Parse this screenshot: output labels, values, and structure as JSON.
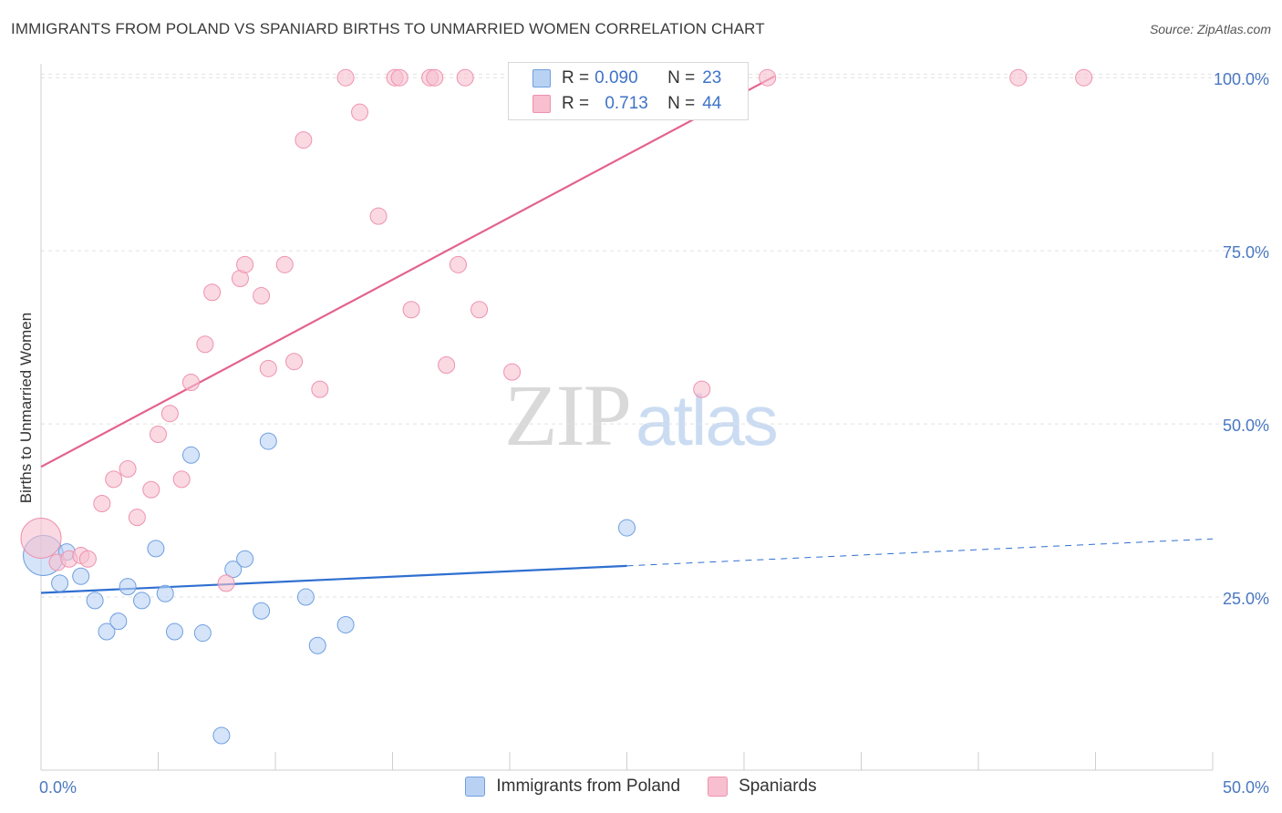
{
  "header": {
    "title": "IMMIGRANTS FROM POLAND VS SPANIARD BIRTHS TO UNMARRIED WOMEN CORRELATION CHART",
    "source": "Source: ZipAtlas.com"
  },
  "watermark": {
    "zip": "ZIP",
    "atlas": "atlas"
  },
  "legend": {
    "rows": [
      {
        "r_label": "R = ",
        "r_value": "0.090",
        "n_label": "N = ",
        "n_value": "23",
        "color": "#b9d2f3"
      },
      {
        "r_label": "R = ",
        "r_value": "0.713",
        "n_label": "N = ",
        "n_value": "44",
        "color": "#f7bfd0"
      }
    ]
  },
  "bottom_legend": [
    {
      "label": "Immigrants from Poland",
      "color": "#b9d2f3"
    },
    {
      "label": "Spaniards",
      "color": "#f7bfd0"
    }
  ],
  "chart_data": {
    "type": "scatter",
    "title": "IMMIGRANTS FROM POLAND VS SPANIARD BIRTHS TO UNMARRIED WOMEN CORRELATION CHART",
    "xlabel": "",
    "ylabel": "Births to Unmarried Women",
    "xlim": [
      0,
      50
    ],
    "ylim": [
      0,
      102
    ],
    "x_tick_labels": [
      "0.0%",
      "50.0%"
    ],
    "y_ticks": [
      25,
      50,
      75,
      100
    ],
    "y_tick_labels": [
      "25.0%",
      "50.0%",
      "75.0%",
      "100.0%"
    ],
    "grid": true,
    "legend_position": "top-center",
    "series": [
      {
        "name": "Immigrants from Poland",
        "color": "#6f9fe0",
        "fill": "#b9d2f3",
        "trend_color": "#2f6fd0",
        "trend": {
          "x0": 0,
          "y0": 25.6,
          "x1": 25,
          "y1": 29.5,
          "dash_to_x": 50,
          "dash_to_y": 33.4
        },
        "points": [
          [
            0.1,
            31.0,
            22
          ],
          [
            0.8,
            27.0,
            9
          ],
          [
            1.1,
            31.5,
            9
          ],
          [
            1.7,
            28.0,
            9
          ],
          [
            2.3,
            24.5,
            9
          ],
          [
            2.8,
            20.0,
            9
          ],
          [
            3.3,
            21.5,
            9
          ],
          [
            3.7,
            26.5,
            9
          ],
          [
            4.3,
            24.5,
            9
          ],
          [
            4.9,
            32.0,
            9
          ],
          [
            5.3,
            25.5,
            9
          ],
          [
            5.7,
            20.0,
            9
          ],
          [
            6.4,
            45.5,
            9
          ],
          [
            6.9,
            19.8,
            9
          ],
          [
            7.7,
            5.0,
            9
          ],
          [
            8.2,
            29.0,
            9
          ],
          [
            8.7,
            30.5,
            9
          ],
          [
            9.4,
            23.0,
            9
          ],
          [
            9.7,
            47.5,
            9
          ],
          [
            11.3,
            25.0,
            9
          ],
          [
            11.8,
            18.0,
            9
          ],
          [
            13.0,
            21.0,
            9
          ],
          [
            25.0,
            35.0,
            9
          ]
        ]
      },
      {
        "name": "Spaniards",
        "color": "#ee92ae",
        "fill": "#f7bfd0",
        "trend_color": "#e3638e",
        "trend": {
          "x0": 0,
          "y0": 43.8,
          "x1": 31.3,
          "y1": 100.2
        },
        "points": [
          [
            0.0,
            33.5,
            22
          ],
          [
            0.7,
            30.0,
            9
          ],
          [
            1.2,
            30.5,
            9
          ],
          [
            1.7,
            31.0,
            9
          ],
          [
            2.0,
            30.5,
            9
          ],
          [
            2.6,
            38.5,
            9
          ],
          [
            3.1,
            42.0,
            9
          ],
          [
            3.7,
            43.5,
            9
          ],
          [
            4.1,
            36.5,
            9
          ],
          [
            4.7,
            40.5,
            9
          ],
          [
            5.0,
            48.5,
            9
          ],
          [
            5.5,
            51.5,
            9
          ],
          [
            6.0,
            42.0,
            9
          ],
          [
            6.4,
            56.0,
            9
          ],
          [
            7.0,
            61.5,
            9
          ],
          [
            7.3,
            69.0,
            9
          ],
          [
            7.9,
            27.0,
            9
          ],
          [
            8.5,
            71.0,
            9
          ],
          [
            8.7,
            73.0,
            9
          ],
          [
            9.4,
            68.5,
            9
          ],
          [
            9.7,
            58.0,
            9
          ],
          [
            10.4,
            73.0,
            9
          ],
          [
            10.8,
            59.0,
            9
          ],
          [
            11.2,
            91.0,
            9
          ],
          [
            11.9,
            55.0,
            9
          ],
          [
            13.0,
            100.0,
            9
          ],
          [
            13.6,
            95.0,
            9
          ],
          [
            14.4,
            80.0,
            9
          ],
          [
            15.1,
            100.0,
            9
          ],
          [
            15.3,
            100.0,
            9
          ],
          [
            15.8,
            66.5,
            9
          ],
          [
            16.6,
            100.0,
            9
          ],
          [
            16.8,
            100.0,
            9
          ],
          [
            17.3,
            58.5,
            9
          ],
          [
            17.8,
            73.0,
            9
          ],
          [
            18.1,
            100.0,
            9
          ],
          [
            18.7,
            66.5,
            9
          ],
          [
            20.1,
            57.5,
            9
          ],
          [
            23.0,
            100.0,
            9
          ],
          [
            28.2,
            55.0,
            9
          ],
          [
            31.0,
            100.0,
            9
          ],
          [
            41.7,
            100.0,
            9
          ],
          [
            44.5,
            100.0,
            9
          ],
          [
            24.5,
            100.0,
            9
          ]
        ]
      }
    ]
  }
}
